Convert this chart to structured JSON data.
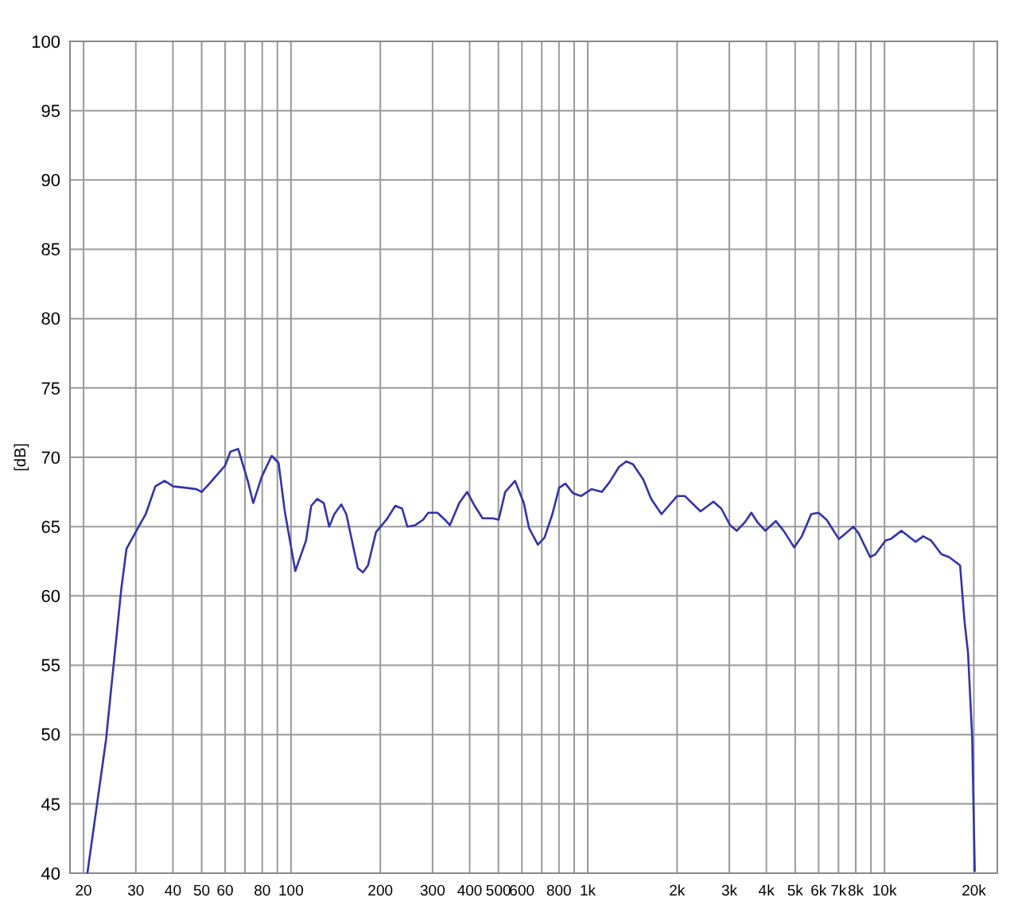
{
  "chart_data": {
    "type": "line",
    "ylabel": "[dB]",
    "log": "x",
    "grid": true,
    "xlim": [
      18,
      24000
    ],
    "ylim": [
      40,
      100
    ],
    "yticks": [
      40,
      45,
      50,
      55,
      60,
      65,
      70,
      75,
      80,
      85,
      90,
      95,
      100
    ],
    "xticks": [
      20,
      30,
      40,
      50,
      60,
      {
        "value": 70,
        "label": null
      },
      80,
      {
        "value": 90,
        "label": null
      },
      100,
      200,
      300,
      400,
      500,
      600,
      {
        "value": 700,
        "label": null
      },
      800,
      {
        "value": 900,
        "label": null
      },
      {
        "value": 1000,
        "label": "1k"
      },
      {
        "value": 2000,
        "label": "2k"
      },
      {
        "value": 3000,
        "label": "3k"
      },
      {
        "value": 4000,
        "label": "4k"
      },
      {
        "value": 5000,
        "label": "5k"
      },
      {
        "value": 6000,
        "label": "6k"
      },
      {
        "value": 7000,
        "label": "7k"
      },
      {
        "value": 8000,
        "label": "8k"
      },
      {
        "value": 9000,
        "label": null
      },
      {
        "value": 10000,
        "label": "10k"
      },
      {
        "value": 20000,
        "label": "20k"
      }
    ],
    "series": [
      {
        "color": "#3333aa",
        "x": [
          20.6,
          23.8,
          26.8,
          27.9,
          30.5,
          32.4,
          34.9,
          37.5,
          40.1,
          44.3,
          48,
          50,
          53.1,
          60,
          62.5,
          66.4,
          71.5,
          74.6,
          79.7,
          86.1,
          90.8,
          95.3,
          103.4,
          112.4,
          117,
          122.6,
          129,
          134.5,
          140,
          147.8,
          153.6,
          168,
          174.8,
          181.8,
          193.4,
          209.8,
          224.7,
          236.9,
          246.7,
          262.3,
          278.9,
          290,
          311.5,
          330,
          343,
          369,
          392.4,
          416,
          442,
          478,
          501,
          527,
          569,
          609,
          634,
          679,
          715,
          760,
          801,
          841,
          893,
          949,
          1029,
          1115,
          1184,
          1274,
          1348,
          1420,
          1539,
          1635,
          1772,
          2000,
          2126,
          2400,
          2653,
          2818,
          3018,
          3180,
          3380,
          3560,
          3735,
          3967,
          4300,
          4571,
          4962,
          5266,
          5661,
          5989,
          6379,
          7019,
          7389,
          7853,
          8188,
          8945,
          9317,
          10090,
          10490,
          11410,
          12720,
          13500,
          14350,
          15560,
          16510,
          17980,
          18600,
          19120,
          19750,
          20150
        ],
        "values": [
          40,
          49.6,
          60.5,
          63.4,
          64.9,
          65.9,
          67.9,
          68.3,
          67.9,
          67.8,
          67.7,
          67.5,
          68.1,
          69.4,
          70.4,
          70.6,
          68.3,
          66.7,
          68.6,
          70.1,
          69.6,
          66.1,
          61.8,
          64,
          66.5,
          67,
          66.7,
          65,
          65.9,
          66.6,
          65.9,
          62,
          61.7,
          62.2,
          64.6,
          65.5,
          66.5,
          66.3,
          65,
          65.1,
          65.5,
          66,
          66,
          65.5,
          65.1,
          66.7,
          67.5,
          66.5,
          65.6,
          65.6,
          65.5,
          67.5,
          68.3,
          66.7,
          64.9,
          63.7,
          64.2,
          65.9,
          67.8,
          68.1,
          67.4,
          67.2,
          67.7,
          67.5,
          68.2,
          69.3,
          69.7,
          69.5,
          68.4,
          67,
          65.9,
          67.2,
          67.2,
          66.1,
          66.8,
          66.3,
          65.1,
          64.7,
          65.3,
          66,
          65.3,
          64.7,
          65.4,
          64.7,
          63.5,
          64.3,
          65.9,
          66,
          65.5,
          64.1,
          64.5,
          65,
          64.5,
          62.8,
          63,
          64,
          64.1,
          64.7,
          63.9,
          64.3,
          64,
          63,
          62.8,
          62.2,
          58.2,
          55.9,
          49.7,
          40.1
        ]
      }
    ]
  }
}
